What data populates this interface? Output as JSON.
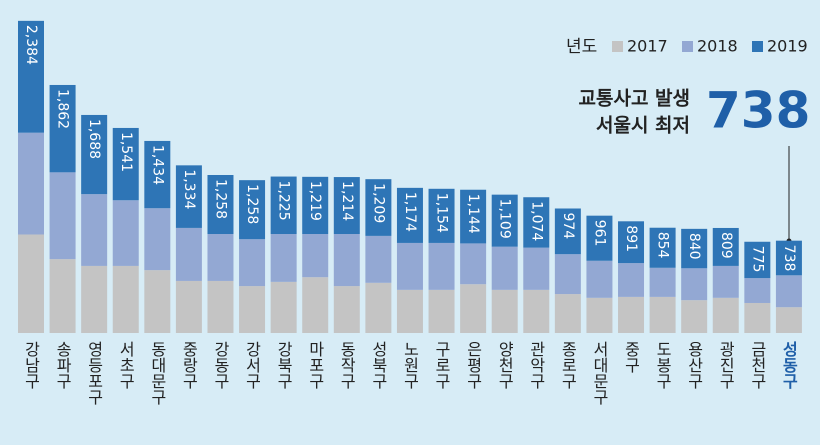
{
  "chart_data": {
    "type": "stacked-bar",
    "legend_title": "년도",
    "annotation": [
      "교통사고 발생",
      "서울시 최저"
    ],
    "annotation_value": "738",
    "categories": [
      "강남구",
      "송파구",
      "영등포구",
      "서초구",
      "동대문구",
      "중랑구",
      "강동구",
      "강서구",
      "강북구",
      "마포구",
      "동작구",
      "성북구",
      "노원구",
      "구로구",
      "은평구",
      "양천구",
      "관악구",
      "종로구",
      "서대문구",
      "중구",
      "도봉구",
      "용산구",
      "광진구",
      "금천구",
      "성동구"
    ],
    "series": [
      {
        "name": "2017",
        "color": "#c4c4c4",
        "values": [
          2100,
          1575,
          1430,
          1430,
          1340,
          1110,
          1110,
          1000,
          1090,
          1190,
          1000,
          1070,
          920,
          920,
          1040,
          920,
          920,
          830,
          750,
          770,
          770,
          700,
          750,
          640,
          550
        ]
      },
      {
        "name": "2018",
        "color": "#93a8d3",
        "values": [
          2170,
          1850,
          1530,
          1400,
          1320,
          1130,
          1000,
          1000,
          1020,
          920,
          1110,
          1000,
          1000,
          1000,
          870,
          920,
          900,
          850,
          790,
          720,
          620,
          680,
          680,
          530,
          680
        ]
      },
      {
        "name": "2019",
        "color": "#2e75b6",
        "values": [
          2384,
          1862,
          1688,
          1541,
          1434,
          1334,
          1258,
          1258,
          1225,
          1219,
          1214,
          1209,
          1174,
          1154,
          1144,
          1109,
          1074,
          974,
          961,
          891,
          854,
          840,
          809,
          775,
          738
        ],
        "value_labels": [
          "2,384",
          "1,862",
          "1,688",
          "1,541",
          "1,434",
          "1,334",
          "1,258",
          "1,258",
          "1,225",
          "1,219",
          "1,214",
          "1,209",
          "1,174",
          "1,154",
          "1,144",
          "1,109",
          "1,074",
          "974",
          "961",
          "891",
          "854",
          "840",
          "809",
          "775",
          "738"
        ]
      }
    ],
    "ylim": [
      0,
      6800
    ]
  }
}
